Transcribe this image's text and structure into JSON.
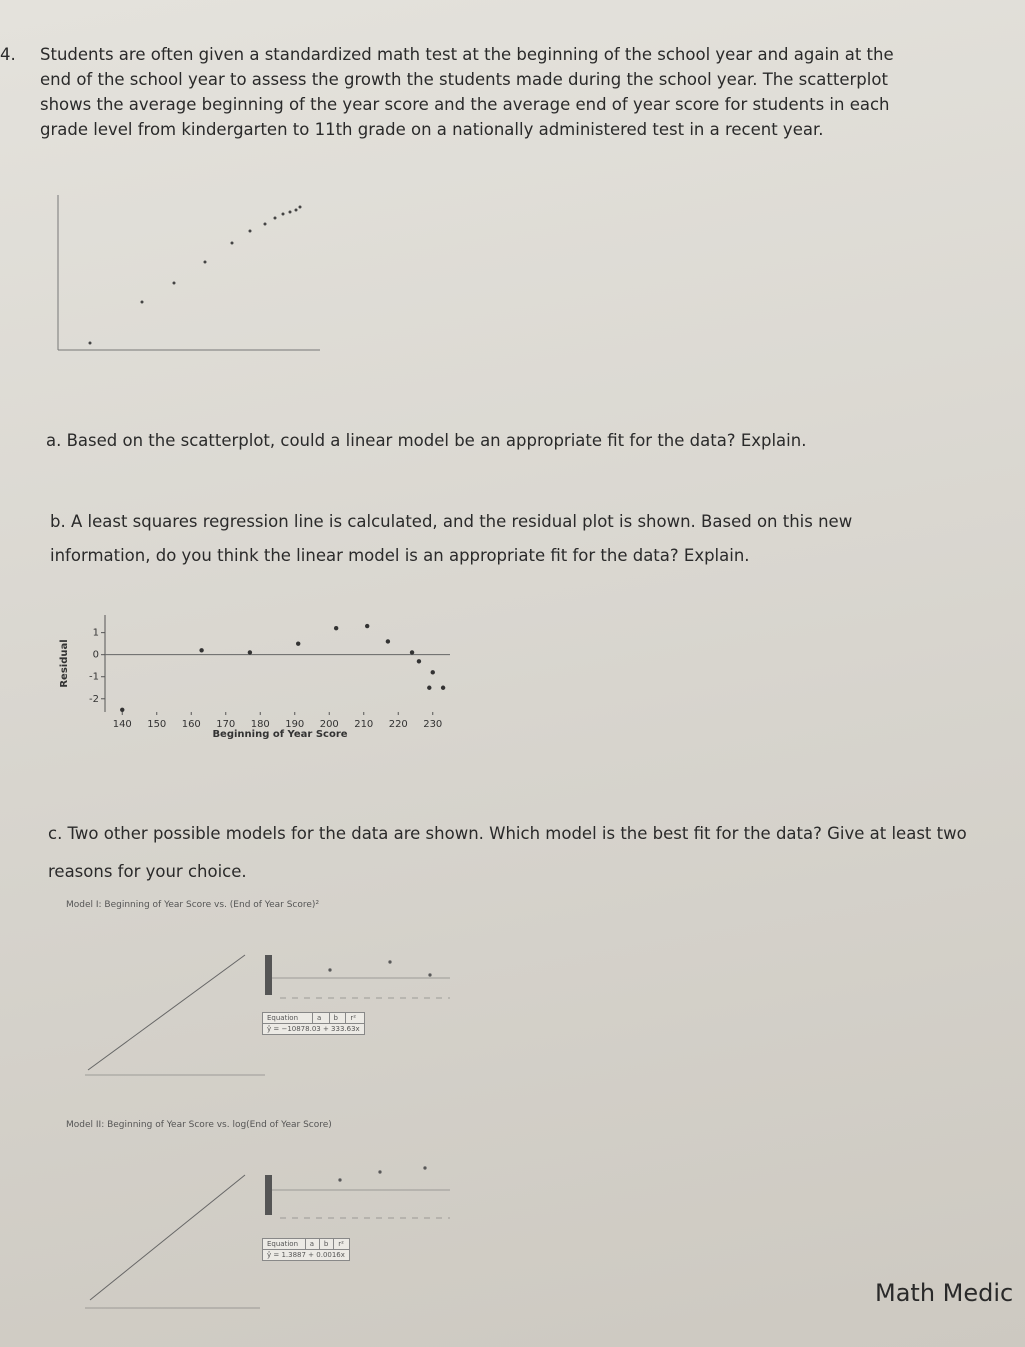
{
  "question": {
    "number": "4.",
    "text": "Students are often given a standardized math test at the beginning of the school year and again at the end of the school year to assess the growth the students made during the school year. The scatterplot shows the average beginning of the year score and the average end of year score for students in each grade level from kindergarten to 11th grade on a nationally administered test in a recent year."
  },
  "part_a": "a. Based on the scatterplot, could a linear model be an appropriate fit for the data? Explain.",
  "part_b": "b. A least squares regression line is calculated, and the residual plot is shown. Based on this new information, do you think the linear model is an appropriate fit for the data? Explain.",
  "residual_plot": {
    "type": "scatter",
    "y_label": "Residual",
    "x_label": "Beginning of Year Score",
    "xlim": [
      135,
      235
    ],
    "ylim": [
      -2.6,
      1.8
    ],
    "xticks": [
      140,
      150,
      160,
      170,
      180,
      190,
      200,
      210,
      220,
      230
    ],
    "yticks": [
      -2,
      -1,
      0,
      1
    ],
    "x": [
      140,
      163,
      177,
      191,
      202,
      211,
      217,
      224,
      226,
      230,
      229,
      233
    ],
    "values": [
      -2.5,
      0.2,
      0.1,
      0.5,
      1.2,
      1.3,
      0.6,
      0.1,
      -0.3,
      -0.8,
      -1.5,
      -1.5
    ]
  },
  "part_c": "c. Two other possible models for the data are shown. Which model is the best fit for the data? Give at least two reasons for your choice.",
  "model_1": {
    "title": "Model I: Beginning of Year Score vs. (End of Year Score)²",
    "table_header": [
      "Equation",
      "a",
      "b",
      "r²"
    ],
    "equation": "ŷ = −10878.03 + 333.63x"
  },
  "model_2": {
    "title": "Model II: Beginning of Year Score vs. log(End of Year Score)",
    "table_header": [
      "Equation",
      "a",
      "b",
      "r²"
    ],
    "equation": "ŷ = 1.3887 + 0.0016x"
  },
  "footer": "Math Medic"
}
